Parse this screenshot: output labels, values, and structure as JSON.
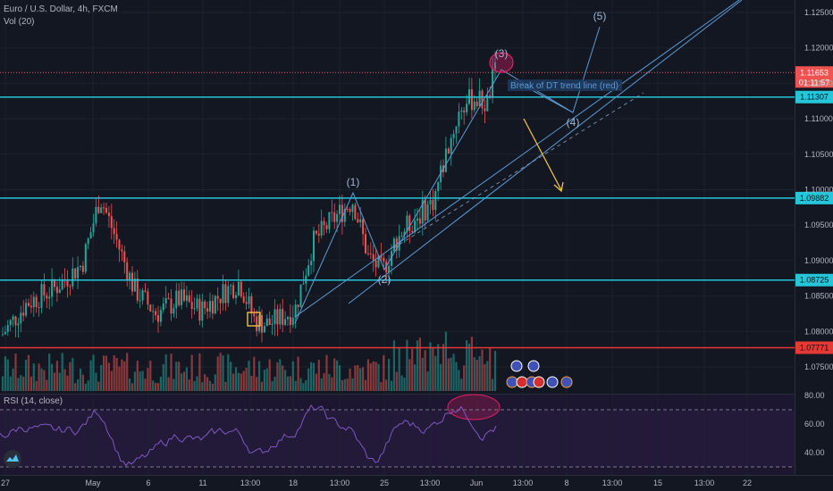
{
  "header": {
    "symbol": "Euro / U.S. Dollar, 4h, FXCM",
    "volume_label": "Vol (20)"
  },
  "rsi": {
    "label": "RSI (14, close)"
  },
  "chart_data": {
    "type": "candlestick",
    "price_axis": {
      "range": [
        1.0705,
        1.1265
      ],
      "ticks": [
        "1.12500",
        "1.12000",
        "1.11500",
        "1.11000",
        "1.10500",
        "1.10000",
        "1.09500",
        "1.09000",
        "1.08500",
        "1.08000",
        "1.07500"
      ]
    },
    "rsi_axis": {
      "range": [
        30,
        80
      ],
      "ticks": [
        "80.00",
        "60.00",
        "40.00"
      ]
    },
    "x_axis_labels": [
      "27",
      "May",
      "6",
      "11",
      "13:00",
      "18",
      "13:00",
      "25",
      "13:00",
      "Jun",
      "13:00",
      "8",
      "13:00",
      "15",
      "13:00",
      "22"
    ],
    "horizontal_levels": [
      {
        "label": "1.11307",
        "price": 1.11307,
        "color": "#26c6da"
      },
      {
        "label": "1.09882",
        "price": 1.09882,
        "color": "#26c6da"
      },
      {
        "label": "1.08725",
        "price": 1.08725,
        "color": "#26c6da"
      },
      {
        "label": "1.07771",
        "price": 1.07771,
        "color": "#e53935"
      }
    ],
    "last_price": {
      "label": "1.11653",
      "price": 1.11653,
      "countdown": "01:11:57",
      "color": "#ef5350"
    },
    "wave_labels": [
      {
        "text": "(1)",
        "x": 395,
        "y": 208
      },
      {
        "text": "(2)",
        "x": 430,
        "y": 317
      },
      {
        "text": "(3)",
        "x": 561,
        "y": 64
      },
      {
        "text": "(4)",
        "x": 641,
        "y": 141
      },
      {
        "text": "(5)",
        "x": 671,
        "y": 22
      }
    ],
    "annotation": {
      "text": "Break of DT trend line (red)"
    },
    "rsi_levels": [
      70,
      30
    ],
    "colors": {
      "up": "#26a69a",
      "down": "#ef5350",
      "rsi": "#7e57c2"
    }
  }
}
